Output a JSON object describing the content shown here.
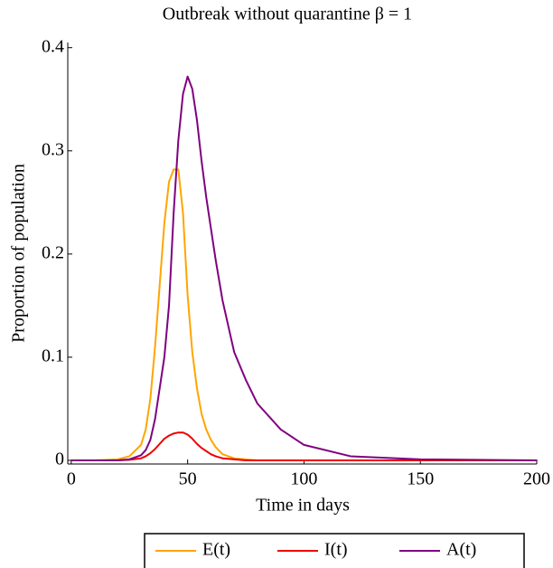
{
  "chart_data": {
    "type": "line",
    "title": "Outbreak without quarantine β = 1",
    "x_label": "Time in days",
    "y_label": "Proportion of population",
    "x": [
      0,
      10,
      20,
      25,
      30,
      32,
      34,
      36,
      38,
      40,
      42,
      44,
      46,
      48,
      50,
      52,
      54,
      56,
      58,
      60,
      62,
      65,
      70,
      75,
      80,
      90,
      100,
      120,
      150,
      200
    ],
    "series": [
      {
        "name": "E(t)",
        "color": "#ffa500",
        "values": [
          0,
          0,
          0.001,
          0.004,
          0.015,
          0.03,
          0.06,
          0.11,
          0.17,
          0.23,
          0.27,
          0.282,
          0.282,
          0.24,
          0.16,
          0.105,
          0.07,
          0.045,
          0.03,
          0.02,
          0.013,
          0.006,
          0.002,
          0.001,
          0,
          0,
          0,
          0,
          0,
          0
        ]
      },
      {
        "name": "I(t)",
        "color": "#ee0000",
        "values": [
          0,
          0,
          0,
          0.0005,
          0.002,
          0.004,
          0.007,
          0.011,
          0.016,
          0.021,
          0.024,
          0.026,
          0.027,
          0.027,
          0.025,
          0.021,
          0.016,
          0.012,
          0.009,
          0.006,
          0.004,
          0.002,
          0.001,
          0,
          0,
          0,
          0,
          0,
          0,
          0
        ]
      },
      {
        "name": "A(t)",
        "color": "#800080",
        "values": [
          0,
          0,
          0,
          0.001,
          0.005,
          0.01,
          0.02,
          0.04,
          0.07,
          0.1,
          0.15,
          0.24,
          0.31,
          0.355,
          0.372,
          0.36,
          0.33,
          0.29,
          0.255,
          0.225,
          0.195,
          0.155,
          0.105,
          0.078,
          0.055,
          0.03,
          0.015,
          0.004,
          0.001,
          0
        ]
      }
    ],
    "xlim": [
      -1.5,
      200
    ],
    "ylim": [
      -0.0035,
      0.405
    ],
    "xticks": [
      0,
      50,
      100,
      150,
      200
    ],
    "yticks": [
      0,
      0.1,
      0.2,
      0.3,
      0.4
    ],
    "legend": "bottom"
  }
}
